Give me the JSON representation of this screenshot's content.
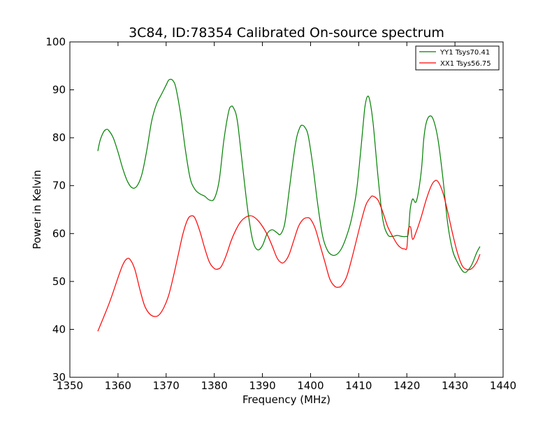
{
  "chart_data": {
    "type": "line",
    "title": "3C84, ID:78354 Calibrated On-source spectrum",
    "xlabel": "Frequency (MHz)",
    "ylabel": "Power in Kelvin",
    "xlim": [
      1350,
      1440
    ],
    "ylim": [
      30,
      100
    ],
    "xticks": [
      1350,
      1360,
      1370,
      1380,
      1390,
      1400,
      1410,
      1420,
      1430,
      1440
    ],
    "yticks": [
      30,
      40,
      50,
      60,
      70,
      80,
      90,
      100
    ],
    "grid": false,
    "legend_position": "top-right",
    "series": [
      {
        "name": "YY1 Tsys70.41",
        "color": "#008000",
        "x": [
          1355.8,
          1356.3,
          1357,
          1357.5,
          1358,
          1359,
          1360,
          1361,
          1362,
          1363,
          1364,
          1365,
          1366,
          1367,
          1368,
          1369,
          1370,
          1370.5,
          1371,
          1371.5,
          1372,
          1373,
          1374,
          1375,
          1376,
          1377,
          1378,
          1379,
          1380,
          1381,
          1382,
          1383,
          1383.6,
          1384,
          1384.5,
          1385,
          1386,
          1387,
          1388,
          1389,
          1390,
          1391,
          1392,
          1393,
          1393.7,
          1394.5,
          1395,
          1396,
          1397,
          1397.8,
          1398.3,
          1398.8,
          1399.5,
          1400.5,
          1401.5,
          1402.5,
          1403.5,
          1404.5,
          1405.5,
          1406.5,
          1407.5,
          1408.5,
          1409.5,
          1410.3,
          1411,
          1411.3,
          1411.8,
          1412.3,
          1413,
          1414,
          1415,
          1416,
          1417,
          1418,
          1419,
          1419.8,
          1420.3,
          1420.7,
          1421.2,
          1422,
          1423,
          1423.5,
          1424,
          1424.7,
          1425.5,
          1426.5,
          1427.5,
          1428.5,
          1429.5,
          1430.5,
          1431.5,
          1432,
          1432.5,
          1433.5,
          1434.5,
          1435.2
        ],
        "y": [
          77.2,
          79.5,
          81.2,
          81.7,
          81.6,
          80.0,
          77.0,
          73.5,
          70.8,
          69.5,
          70.0,
          72.5,
          77.5,
          83.5,
          87.0,
          89.0,
          91.0,
          92.0,
          92.2,
          91.8,
          90.5,
          85.0,
          77.5,
          71.5,
          69.2,
          68.3,
          67.8,
          67.0,
          67.3,
          71.0,
          79.5,
          85.5,
          86.6,
          86.2,
          85.0,
          82.0,
          73.0,
          64.5,
          58.5,
          56.6,
          57.5,
          60.0,
          60.8,
          60.2,
          59.8,
          61.5,
          64.5,
          72.5,
          79.5,
          82.2,
          82.6,
          82.2,
          80.5,
          74.0,
          66.0,
          59.5,
          56.5,
          55.5,
          55.7,
          57.0,
          59.5,
          63.0,
          68.5,
          76.0,
          83.5,
          86.5,
          88.6,
          87.8,
          83.0,
          72.0,
          63.0,
          59.8,
          59.4,
          59.6,
          59.4,
          59.4,
          60.0,
          65.0,
          67.2,
          66.8,
          73.0,
          79.5,
          83.0,
          84.5,
          83.8,
          79.5,
          71.5,
          62.0,
          56.5,
          54.0,
          52.3,
          51.9,
          52.1,
          53.5,
          56.0,
          57.3
        ]
      },
      {
        "name": "XX1 Tsys56.75",
        "color": "#ff0000",
        "x": [
          1355.8,
          1357,
          1358,
          1359,
          1360,
          1361,
          1361.8,
          1362.5,
          1363.5,
          1364.5,
          1365.5,
          1366.5,
          1367.5,
          1368.5,
          1369.5,
          1370.5,
          1371.5,
          1372.5,
          1373.5,
          1374.5,
          1375.3,
          1376,
          1377,
          1378,
          1379,
          1380,
          1380.8,
          1381.5,
          1382.5,
          1383.5,
          1384.5,
          1385.5,
          1386.5,
          1387.3,
          1388,
          1389,
          1390,
          1391,
          1392,
          1393,
          1393.8,
          1394.5,
          1395.5,
          1396.5,
          1397.5,
          1398.5,
          1399.3,
          1400,
          1401,
          1402,
          1403,
          1404,
          1405,
          1405.8,
          1406.5,
          1407.5,
          1408.5,
          1409.5,
          1410.5,
          1411.5,
          1412.5,
          1413,
          1414,
          1415,
          1416,
          1417,
          1418,
          1418.8,
          1419.5,
          1420,
          1420.3,
          1420.8,
          1421.2,
          1422,
          1423,
          1424,
          1425,
          1425.8,
          1426.5,
          1427.5,
          1428.5,
          1429.5,
          1430.5,
          1431.5,
          1432.5,
          1433.5,
          1434.5,
          1435.2
        ],
        "y": [
          39.6,
          42.5,
          45.0,
          47.8,
          50.8,
          53.5,
          54.7,
          54.6,
          52.5,
          48.5,
          45.0,
          43.3,
          42.7,
          43.0,
          44.5,
          47.0,
          51.0,
          55.5,
          60.0,
          63.0,
          63.7,
          63.2,
          60.5,
          57.0,
          54.0,
          52.7,
          52.6,
          53.2,
          55.5,
          58.5,
          60.8,
          62.5,
          63.4,
          63.7,
          63.6,
          62.8,
          61.5,
          59.8,
          57.5,
          55.0,
          54.0,
          54.0,
          55.5,
          58.5,
          61.5,
          63.0,
          63.3,
          63.0,
          61.0,
          57.5,
          54.0,
          50.5,
          49.0,
          48.8,
          49.2,
          51.0,
          54.5,
          58.5,
          62.5,
          66.0,
          67.6,
          67.8,
          67.0,
          64.5,
          61.5,
          59.5,
          57.8,
          57.0,
          56.8,
          57.0,
          60.8,
          61.3,
          58.8,
          60.5,
          63.5,
          67.0,
          69.8,
          71.0,
          70.8,
          68.5,
          64.5,
          60.0,
          56.0,
          53.3,
          52.5,
          52.7,
          54.0,
          55.7
        ]
      }
    ]
  }
}
